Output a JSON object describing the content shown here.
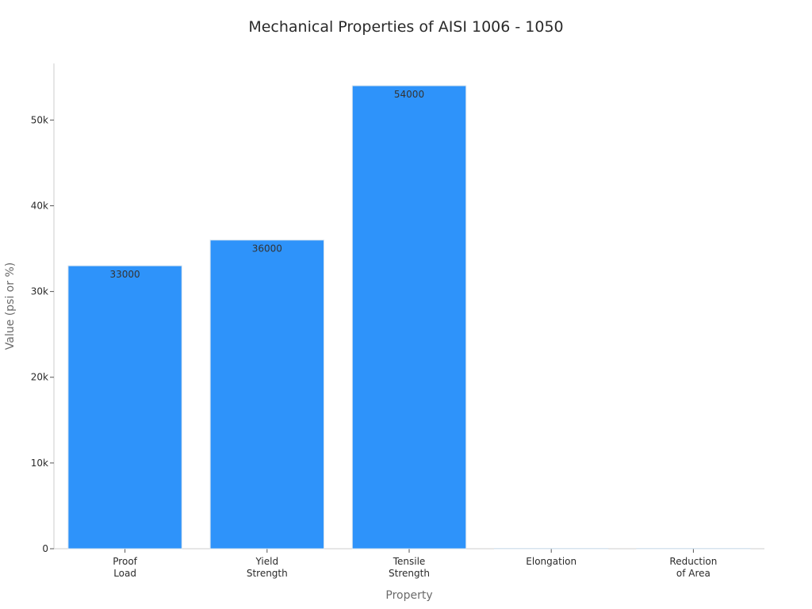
{
  "chart_data": {
    "type": "bar",
    "title": "Mechanical Properties of AISI 1006 - 1050",
    "xlabel": "Property",
    "ylabel": "Value (psi or %)",
    "categories": [
      [
        "Proof",
        "Load"
      ],
      [
        "Yield",
        "Strength"
      ],
      [
        "Tensile",
        "Strength"
      ],
      [
        "Elongation"
      ],
      [
        "Reduction",
        "of Area"
      ]
    ],
    "values": [
      33000,
      36000,
      54000,
      20,
      40
    ],
    "data_labels": [
      "33000",
      "36000",
      "54000",
      "",
      ""
    ],
    "ylim": [
      0,
      56600
    ],
    "yticks": [
      0,
      10000,
      20000,
      30000,
      40000,
      50000
    ],
    "ytick_labels": [
      "0",
      "10k",
      "20k",
      "30k",
      "40k",
      "50k"
    ],
    "grid": false,
    "colors": {
      "bar": "#2e93fa",
      "bar_edge": "#d6e3ee",
      "axis": "#cccccc"
    }
  }
}
